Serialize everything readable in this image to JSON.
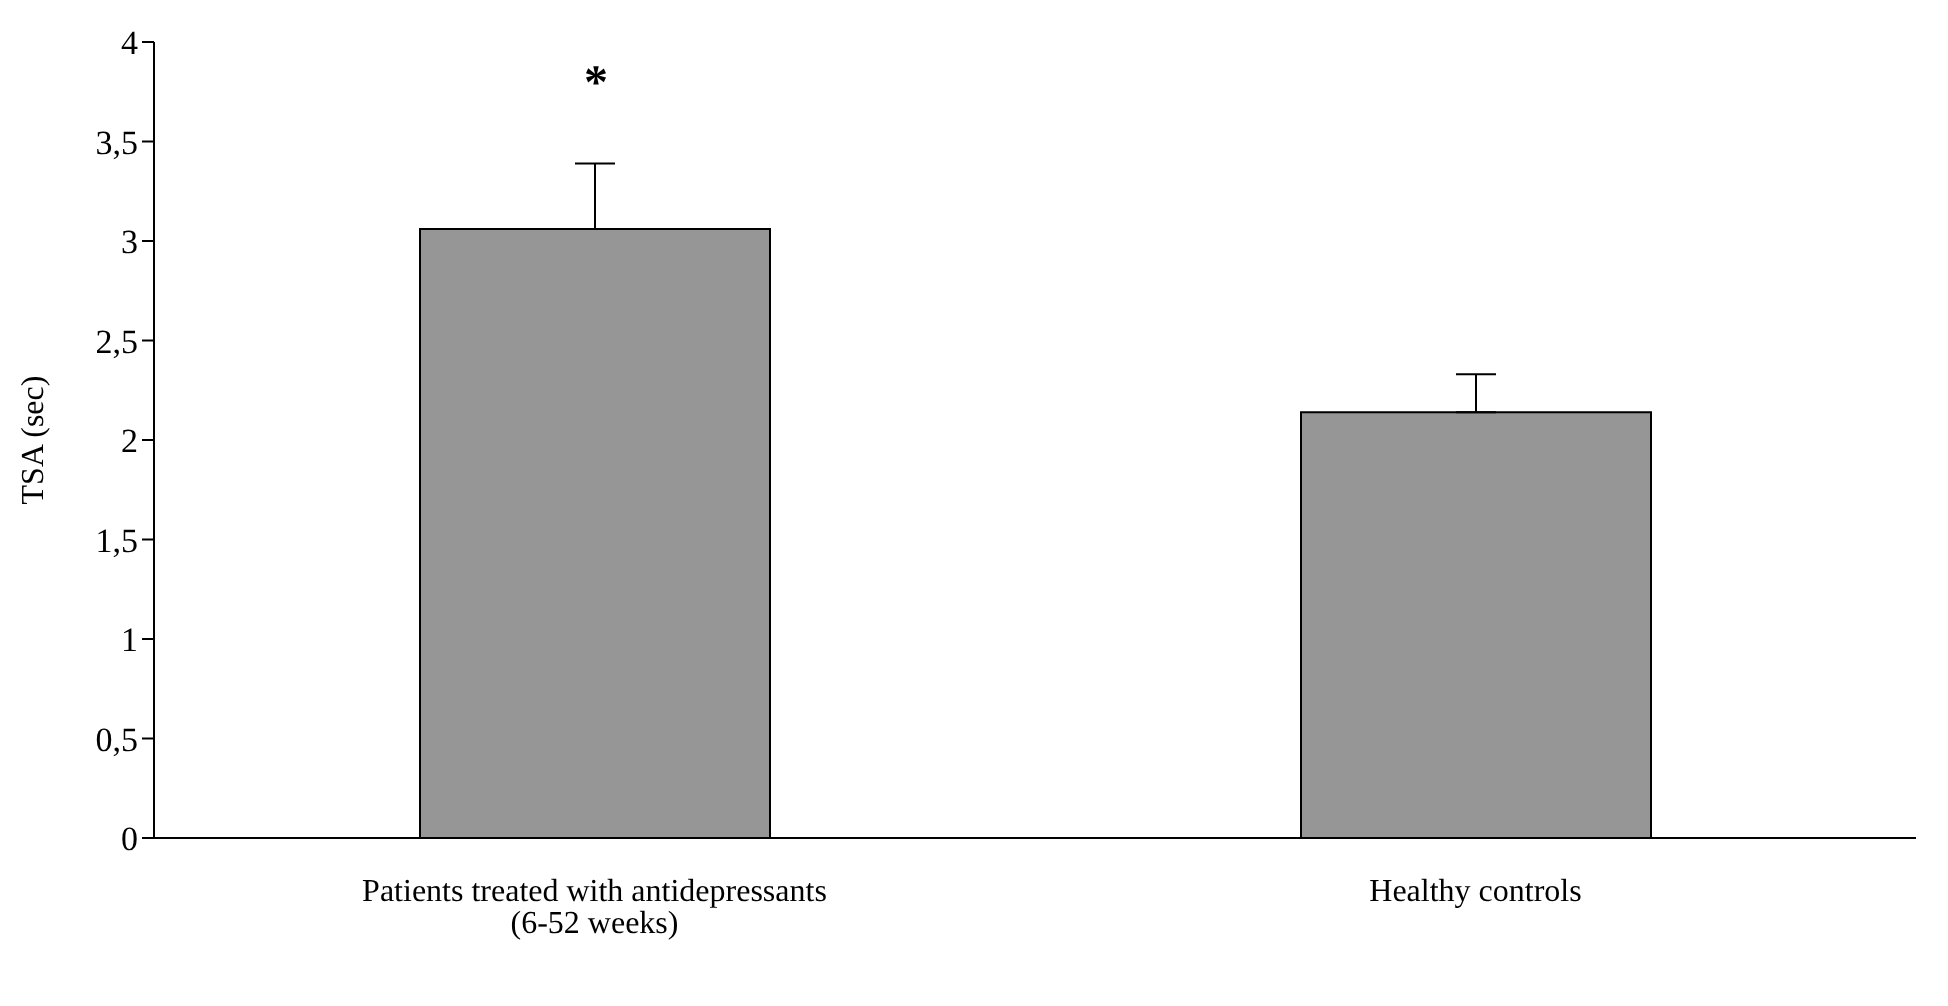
{
  "chart_data": {
    "type": "bar",
    "ylabel": "TSA (sec)",
    "categories": [
      "Patients treated with antidepressants (6-52 weeks)",
      "Healthy controls"
    ],
    "values": [
      3.06,
      2.14
    ],
    "errors": [
      [
        3.06,
        3.39
      ],
      [
        2.14,
        2.33
      ]
    ],
    "color": "#969696",
    "ylim": [
      0,
      4
    ],
    "yticks": [
      0,
      {
        "value": 0.5,
        "label": "0,5"
      },
      1,
      {
        "value": 1.5,
        "label": "1,5"
      },
      2,
      {
        "value": 2.5,
        "label": "2,5"
      },
      3,
      {
        "value": 3.5,
        "label": "3,5"
      },
      4
    ],
    "annotations": [
      "*"
    ],
    "grid": false,
    "legend": false
  }
}
